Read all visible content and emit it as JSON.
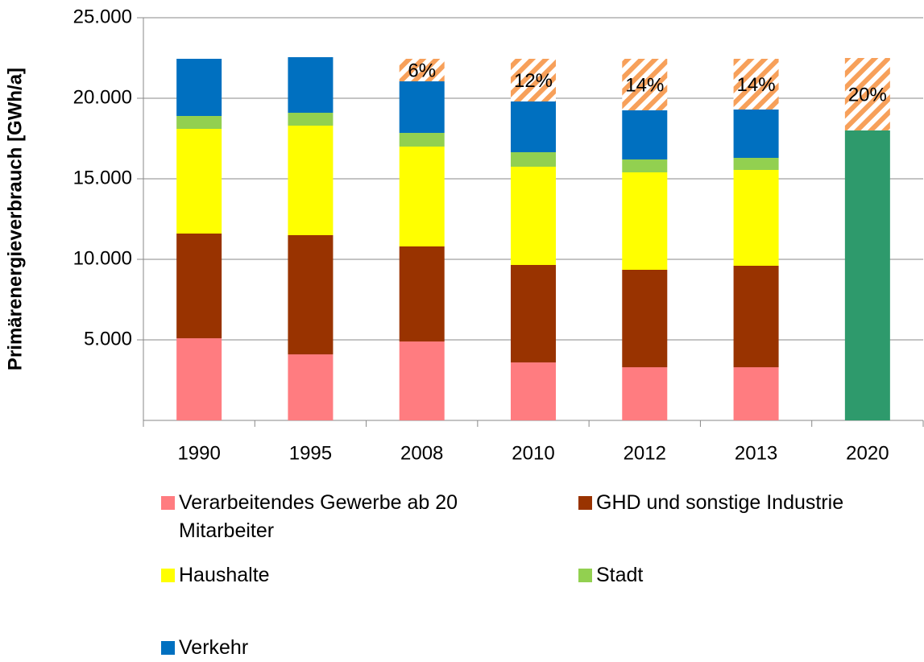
{
  "chart_data": {
    "type": "stacked_bar",
    "y_label": "Primärenergieverbrauch [GWh/a]",
    "categories": [
      "1990",
      "1995",
      "2008",
      "2010",
      "2012",
      "2013",
      "2020"
    ],
    "series": [
      {
        "name": "Verarbeitendes Gewerbe ab 20 Mitarbeiter",
        "color": "#ff7c80",
        "values": [
          5100,
          4100,
          4900,
          3600,
          3300,
          3300,
          null
        ]
      },
      {
        "name": "GHD und sonstige Industrie",
        "color": "#993300",
        "values": [
          6500,
          7400,
          5900,
          6050,
          6050,
          6300,
          null
        ]
      },
      {
        "name": "Haushalte",
        "color": "#ffff00",
        "values": [
          6500,
          6800,
          6200,
          6100,
          6050,
          5950,
          null
        ]
      },
      {
        "name": "Stadt",
        "color": "#92d050",
        "values": [
          800,
          800,
          850,
          900,
          800,
          750,
          null
        ]
      },
      {
        "name": "Verkehr",
        "color": "#0070c0",
        "values": [
          3550,
          3450,
          3200,
          3150,
          3050,
          3000,
          null
        ]
      }
    ],
    "target": {
      "color": "#2e9a6c",
      "values": [
        null,
        null,
        null,
        null,
        null,
        null,
        18000
      ]
    },
    "reduction": {
      "color": "#f7a05a",
      "values": [
        null,
        null,
        1400,
        2650,
        3200,
        3150,
        4500
      ],
      "annotations": [
        null,
        null,
        "6%",
        "12%",
        "14%",
        "14%",
        "20%"
      ]
    },
    "ylim": [
      0,
      25000
    ],
    "yticks": [
      {
        "value": 5000,
        "label": "5.000"
      },
      {
        "value": 10000,
        "label": "10.000"
      },
      {
        "value": 15000,
        "label": "15.000"
      },
      {
        "value": 20000,
        "label": "20.000"
      },
      {
        "value": 25000,
        "label": "25.000"
      }
    ],
    "grid": true
  }
}
